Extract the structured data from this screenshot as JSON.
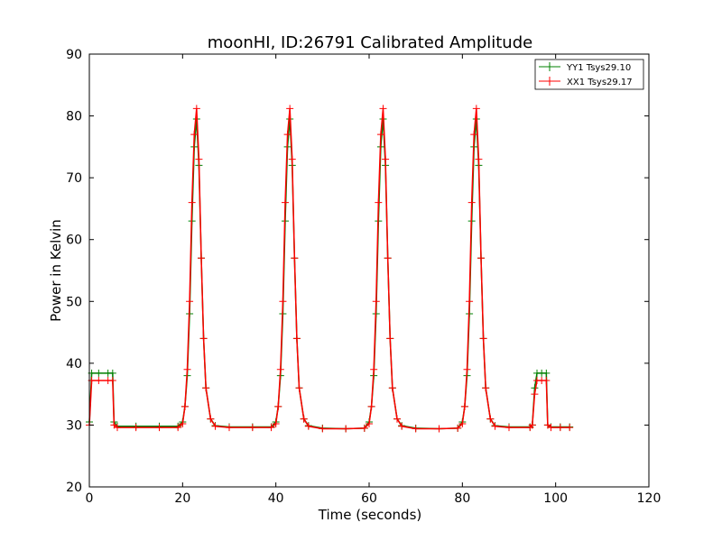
{
  "chart_data": {
    "type": "line",
    "title": "moonHI, ID:26791 Calibrated Amplitude",
    "xlabel": "Time (seconds)",
    "ylabel": "Power in Kelvin",
    "xlim": [
      0,
      120
    ],
    "ylim": [
      20,
      90
    ],
    "xticks": [
      "0",
      "20",
      "40",
      "60",
      "80",
      "100",
      "120"
    ],
    "yticks": [
      "20",
      "30",
      "40",
      "50",
      "60",
      "70",
      "80",
      "90"
    ],
    "grid": false,
    "legend_position": "top-right",
    "marker": "+",
    "series": [
      {
        "name": "YY1 Tsys29.10",
        "color": "#008000",
        "x": [
          0,
          0.5,
          2,
          4,
          5,
          5.3,
          6,
          10,
          15,
          19,
          20,
          20.5,
          21,
          21.5,
          22,
          22.5,
          23,
          23.5,
          24,
          24.5,
          25,
          26,
          27,
          30,
          35,
          39,
          40,
          40.5,
          41,
          41.5,
          42,
          42.5,
          43,
          43.5,
          44,
          44.5,
          45,
          46,
          47,
          50,
          55,
          59,
          60,
          60.5,
          61,
          61.5,
          62,
          62.5,
          63,
          63.5,
          64,
          64.5,
          65,
          66,
          67,
          70,
          75,
          79,
          80,
          80.5,
          81,
          81.5,
          82,
          82.5,
          83,
          83.5,
          84,
          84.5,
          85,
          86,
          87,
          90,
          94.5,
          95,
          95.5,
          96,
          97,
          98,
          98.3,
          99,
          101,
          103
        ],
        "y": [
          30.5,
          38.4,
          38.4,
          38.4,
          38.4,
          30.5,
          29.8,
          29.8,
          29.8,
          29.8,
          30.5,
          33,
          38,
          48,
          63,
          75,
          79.5,
          72,
          57,
          44,
          36,
          31,
          29.9,
          29.7,
          29.7,
          29.7,
          30.5,
          33,
          38,
          48,
          63,
          75,
          79.5,
          72,
          57,
          44,
          36,
          31,
          29.9,
          29.5,
          29.4,
          29.5,
          30.5,
          33,
          38,
          48,
          63,
          75,
          79.5,
          72,
          57,
          44,
          36,
          31,
          29.9,
          29.5,
          29.4,
          29.5,
          30.5,
          33,
          38,
          48,
          63,
          75,
          79.5,
          72,
          57,
          44,
          36,
          31,
          29.9,
          29.7,
          29.7,
          30,
          36,
          38.4,
          38.4,
          38.4,
          30,
          29.7,
          29.7,
          29.7
        ]
      },
      {
        "name": "XX1 Tsys29.17",
        "color": "#ff0000",
        "x": [
          0,
          0.5,
          2,
          4,
          5,
          5.3,
          6,
          10,
          15,
          19,
          20,
          20.5,
          21,
          21.5,
          22,
          22.5,
          23,
          23.5,
          24,
          24.5,
          25,
          26,
          27,
          30,
          35,
          39,
          40,
          40.5,
          41,
          41.5,
          42,
          42.5,
          43,
          43.5,
          44,
          44.5,
          45,
          46,
          47,
          50,
          55,
          59,
          60,
          60.5,
          61,
          61.5,
          62,
          62.5,
          63,
          63.5,
          64,
          64.5,
          65,
          66,
          67,
          70,
          75,
          79,
          80,
          80.5,
          81,
          81.5,
          82,
          82.5,
          83,
          83.5,
          84,
          84.5,
          85,
          86,
          87,
          90,
          94.5,
          95,
          95.5,
          96,
          97,
          98,
          98.3,
          99,
          101,
          103
        ],
        "y": [
          30,
          37.2,
          37.2,
          37.2,
          37.2,
          30,
          29.6,
          29.6,
          29.6,
          29.6,
          30.2,
          33,
          39,
          50,
          66,
          77,
          81.2,
          73,
          57,
          44,
          36,
          31,
          29.8,
          29.6,
          29.6,
          29.6,
          30.2,
          33,
          39,
          50,
          66,
          77,
          81.2,
          73,
          57,
          44,
          36,
          31,
          29.8,
          29.4,
          29.4,
          29.5,
          30.2,
          33,
          39,
          50,
          66,
          77,
          81.2,
          73,
          57,
          44,
          36,
          31,
          29.8,
          29.4,
          29.4,
          29.5,
          30.2,
          33,
          39,
          50,
          66,
          77,
          81.2,
          73,
          57,
          44,
          36,
          31,
          29.8,
          29.6,
          29.6,
          30,
          35,
          37.2,
          37.2,
          37.2,
          30,
          29.6,
          29.6,
          29.6
        ]
      }
    ]
  }
}
